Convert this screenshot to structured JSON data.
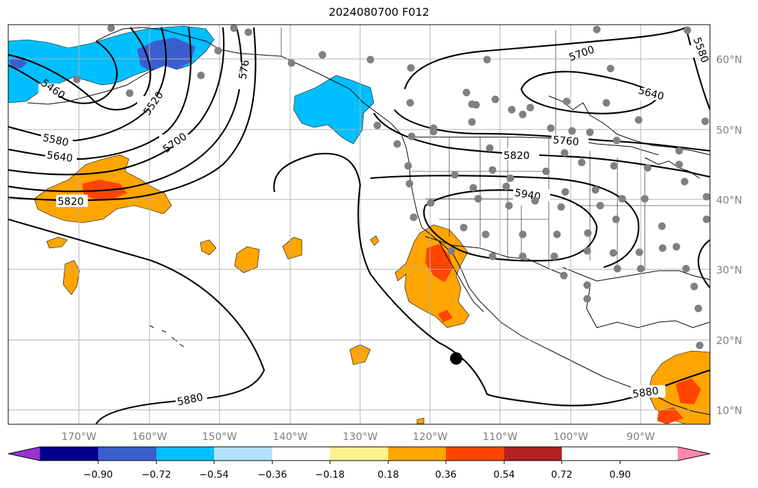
{
  "title": "2024080700 F012",
  "lon_labels": [
    "170°W",
    "160°W",
    "150°W",
    "140°W",
    "130°W",
    "120°W",
    "110°W",
    "100°W",
    "90°W"
  ],
  "lat_labels": [
    "60°N",
    "50°N",
    "40°N",
    "30°N",
    "20°N",
    "10°N"
  ],
  "contour_labels": [
    "5460",
    "5520",
    "5580",
    "5640",
    "5700",
    "5760",
    "5820",
    "5880",
    "5940"
  ],
  "colorbar": {
    "ticks": [
      "−0.90",
      "−0.72",
      "−0.54",
      "−0.36",
      "−0.18",
      "0.18",
      "0.36",
      "0.54",
      "0.72",
      "0.90"
    ],
    "colors": [
      "#9932cc",
      "#00008b",
      "#3a5fcd",
      "#00bfff",
      "#b0e2ff",
      "#ffffff",
      "#fff08c",
      "#ffa500",
      "#ff4500",
      "#b22222",
      "#ff88aa"
    ]
  },
  "colors": {
    "contour": "#000000",
    "grid": "#b0b0b0",
    "station": "#808080"
  }
}
